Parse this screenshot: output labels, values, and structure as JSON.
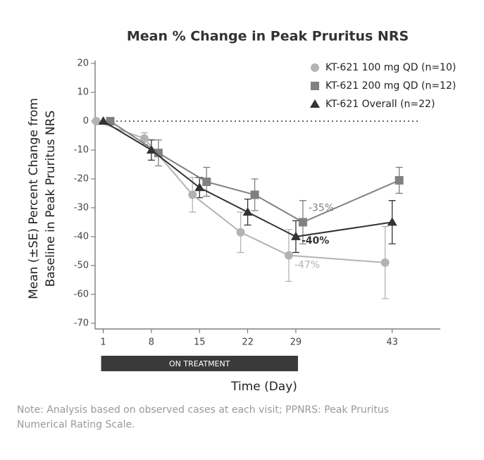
{
  "chart_data": {
    "type": "line",
    "title": "Mean % Change in Peak Pruritus NRS",
    "x_label": "Time (Day)",
    "y_label": [
      "Mean (±SE) Percent Change from",
      "Baseline in Peak Pruritus NRS"
    ],
    "x": [
      1,
      8,
      15,
      22,
      29,
      43
    ],
    "xlim": [
      -1,
      50
    ],
    "xticks": [
      1,
      8,
      15,
      22,
      29,
      43
    ],
    "ylim": [
      -72,
      21
    ],
    "yticks": [
      20,
      10,
      0,
      -10,
      -20,
      -30,
      -40,
      -50,
      -60,
      -70
    ],
    "legend": "upper right",
    "series": [
      {
        "name": "KT-621 100 mg QD (n=10)",
        "color": "#b3b3b3",
        "marker": "circle",
        "values": [
          0,
          -6,
          -25.5,
          -38.5,
          -46.5,
          -49
        ],
        "errors": [
          0,
          2,
          6,
          7,
          9,
          12.5
        ]
      },
      {
        "name": "KT-621 200 mg QD (n=12)",
        "color": "#808080",
        "marker": "square",
        "values": [
          0,
          -11,
          -21,
          -25.5,
          -35,
          -20.5
        ],
        "errors": [
          0,
          4.5,
          5,
          5.5,
          7.5,
          4.5
        ]
      },
      {
        "name": "KT-621 Overall (n=22)",
        "color": "#333333",
        "marker": "triangle",
        "values": [
          0,
          -10,
          -23,
          -31.5,
          -40,
          -35
        ],
        "errors": [
          0,
          3.5,
          3.5,
          4.5,
          5.5,
          7.5
        ]
      }
    ],
    "annotations": [
      {
        "text": "-35%",
        "series": 1,
        "index": 4
      },
      {
        "text": "-40%",
        "series": 2,
        "index": 4
      },
      {
        "text": "-47%",
        "series": 0,
        "index": 4
      }
    ],
    "treatment": {
      "label": "ON TREATMENT",
      "start": 1,
      "end": 29
    },
    "note": [
      "Note: Analysis based on observed cases at each visit; PPNRS: Peak Pruritus",
      "Numerical Rating Scale."
    ]
  }
}
